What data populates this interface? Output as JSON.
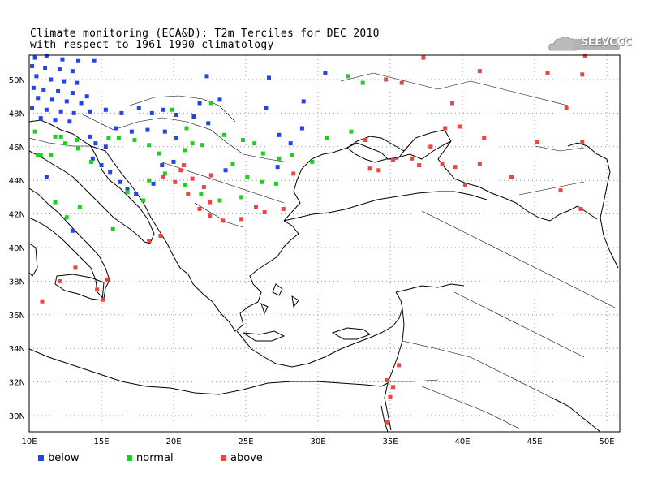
{
  "title": {
    "line1": "Climate monitoring (ECA&D): T2m Terciles for DEC 2010",
    "line2": "with respect to 1961-1990 climatology"
  },
  "logo": {
    "text": "SEEVCCC",
    "icon": "cloud-icon"
  },
  "colors": {
    "below": "#2244ee",
    "normal": "#22cc22",
    "above": "#ee4444",
    "coast": "#000000",
    "grid": "#999999"
  },
  "axes": {
    "lon_labels": [
      "10E",
      "15E",
      "20E",
      "25E",
      "30E",
      "35E",
      "40E",
      "45E",
      "50E"
    ],
    "lat_labels": [
      "30N",
      "32N",
      "34N",
      "36N",
      "38N",
      "40N",
      "42N",
      "44N",
      "46N",
      "48N",
      "50N"
    ]
  },
  "legend": [
    {
      "key": "below",
      "label": "below"
    },
    {
      "key": "normal",
      "label": "normal"
    },
    {
      "key": "above",
      "label": "above"
    }
  ],
  "stations": {
    "below": [
      [
        10.4,
        51.3
      ],
      [
        11.2,
        51.4
      ],
      [
        12.3,
        51.2
      ],
      [
        13.4,
        51.1
      ],
      [
        14.5,
        51.1
      ],
      [
        10.2,
        50.8
      ],
      [
        11.1,
        50.7
      ],
      [
        12.1,
        50.6
      ],
      [
        13.0,
        50.5
      ],
      [
        10.5,
        50.2
      ],
      [
        11.5,
        50.0
      ],
      [
        12.4,
        49.9
      ],
      [
        13.3,
        49.8
      ],
      [
        10.3,
        49.5
      ],
      [
        11.0,
        49.4
      ],
      [
        12.0,
        49.3
      ],
      [
        13.0,
        49.2
      ],
      [
        14.0,
        49.0
      ],
      [
        10.6,
        48.9
      ],
      [
        11.6,
        48.8
      ],
      [
        12.6,
        48.7
      ],
      [
        13.6,
        48.6
      ],
      [
        10.2,
        48.3
      ],
      [
        11.2,
        48.2
      ],
      [
        12.2,
        48.1
      ],
      [
        13.1,
        48.0
      ],
      [
        14.2,
        48.1
      ],
      [
        15.3,
        48.2
      ],
      [
        10.8,
        47.7
      ],
      [
        11.8,
        47.6
      ],
      [
        12.8,
        47.5
      ],
      [
        16.4,
        48.0
      ],
      [
        17.6,
        48.3
      ],
      [
        18.5,
        48.0
      ],
      [
        19.3,
        48.2
      ],
      [
        20.2,
        47.9
      ],
      [
        21.4,
        47.8
      ],
      [
        21.8,
        48.6
      ],
      [
        23.2,
        48.8
      ],
      [
        22.4,
        47.4
      ],
      [
        16.0,
        47.1
      ],
      [
        17.1,
        46.9
      ],
      [
        18.2,
        47.0
      ],
      [
        19.4,
        46.9
      ],
      [
        20.2,
        46.5
      ],
      [
        14.2,
        46.6
      ],
      [
        14.6,
        46.2
      ],
      [
        15.3,
        46.0
      ],
      [
        14.4,
        45.3
      ],
      [
        15.0,
        44.9
      ],
      [
        15.6,
        44.5
      ],
      [
        16.3,
        43.9
      ],
      [
        16.8,
        43.5
      ],
      [
        17.4,
        43.2
      ],
      [
        18.6,
        43.8
      ],
      [
        19.2,
        44.9
      ],
      [
        20.0,
        45.1
      ],
      [
        23.6,
        44.6
      ],
      [
        26.4,
        48.3
      ],
      [
        27.3,
        46.7
      ],
      [
        28.1,
        46.2
      ],
      [
        27.2,
        44.8
      ],
      [
        11.2,
        44.2
      ],
      [
        13.0,
        41.0
      ],
      [
        26.6,
        50.1
      ],
      [
        30.5,
        50.4
      ],
      [
        28.9,
        47.1
      ],
      [
        29.0,
        48.7
      ],
      [
        22.3,
        50.2
      ]
    ],
    "normal": [
      [
        10.4,
        46.9
      ],
      [
        11.8,
        46.6
      ],
      [
        12.5,
        46.2
      ],
      [
        13.3,
        46.4
      ],
      [
        10.6,
        45.5
      ],
      [
        11.5,
        45.5
      ],
      [
        15.5,
        46.5
      ],
      [
        16.2,
        46.5
      ],
      [
        17.3,
        46.4
      ],
      [
        18.3,
        46.1
      ],
      [
        19.0,
        45.6
      ],
      [
        20.8,
        45.8
      ],
      [
        21.3,
        46.2
      ],
      [
        22.0,
        46.1
      ],
      [
        23.5,
        46.7
      ],
      [
        24.8,
        46.4
      ],
      [
        25.6,
        46.2
      ],
      [
        26.2,
        45.6
      ],
      [
        27.3,
        45.3
      ],
      [
        28.2,
        45.5
      ],
      [
        29.6,
        45.1
      ],
      [
        30.6,
        46.5
      ],
      [
        24.1,
        45.0
      ],
      [
        25.1,
        44.2
      ],
      [
        26.1,
        43.9
      ],
      [
        27.1,
        43.8
      ],
      [
        24.7,
        43.0
      ],
      [
        23.2,
        42.8
      ],
      [
        21.9,
        43.2
      ],
      [
        20.8,
        43.7
      ],
      [
        19.4,
        44.4
      ],
      [
        18.3,
        44.0
      ],
      [
        16.8,
        43.3
      ],
      [
        17.9,
        42.8
      ],
      [
        15.8,
        41.1
      ],
      [
        13.5,
        42.4
      ],
      [
        11.8,
        42.7
      ],
      [
        12.6,
        41.8
      ],
      [
        13.4,
        45.9
      ],
      [
        14.3,
        45.1
      ],
      [
        19.9,
        48.2
      ],
      [
        20.9,
        47.1
      ],
      [
        22.6,
        48.6
      ],
      [
        32.1,
        50.2
      ],
      [
        33.1,
        49.8
      ],
      [
        32.3,
        46.9
      ],
      [
        12.2,
        46.6
      ],
      [
        10.8,
        45.5
      ]
    ],
    "above": [
      [
        37.3,
        51.3
      ],
      [
        41.2,
        50.5
      ],
      [
        45.9,
        50.4
      ],
      [
        48.5,
        51.4
      ],
      [
        48.3,
        50.3
      ],
      [
        34.7,
        50.0
      ],
      [
        35.8,
        49.8
      ],
      [
        39.3,
        48.6
      ],
      [
        47.2,
        48.3
      ],
      [
        38.8,
        47.1
      ],
      [
        39.8,
        47.2
      ],
      [
        41.5,
        46.5
      ],
      [
        45.2,
        46.3
      ],
      [
        48.3,
        46.3
      ],
      [
        37.8,
        46.0
      ],
      [
        36.5,
        45.3
      ],
      [
        38.6,
        45.0
      ],
      [
        39.5,
        44.8
      ],
      [
        41.2,
        45.0
      ],
      [
        43.4,
        44.2
      ],
      [
        40.2,
        43.7
      ],
      [
        46.8,
        43.4
      ],
      [
        48.2,
        42.3
      ],
      [
        33.3,
        46.4
      ],
      [
        33.6,
        44.7
      ],
      [
        34.2,
        44.6
      ],
      [
        35.2,
        45.2
      ],
      [
        37.0,
        44.9
      ],
      [
        20.1,
        43.9
      ],
      [
        20.5,
        44.6
      ],
      [
        21.3,
        44.1
      ],
      [
        21.0,
        43.2
      ],
      [
        22.1,
        43.6
      ],
      [
        22.5,
        42.7
      ],
      [
        21.8,
        42.3
      ],
      [
        22.5,
        41.9
      ],
      [
        23.4,
        41.6
      ],
      [
        24.7,
        41.7
      ],
      [
        25.7,
        42.4
      ],
      [
        26.3,
        42.1
      ],
      [
        27.6,
        42.3
      ],
      [
        28.3,
        44.4
      ],
      [
        19.3,
        44.2
      ],
      [
        20.7,
        44.9
      ],
      [
        22.6,
        44.3
      ],
      [
        18.3,
        40.4
      ],
      [
        19.1,
        40.7
      ],
      [
        15.4,
        38.1
      ],
      [
        14.7,
        37.5
      ],
      [
        15.1,
        36.9
      ],
      [
        12.1,
        38.0
      ],
      [
        13.2,
        38.8
      ],
      [
        10.9,
        36.8
      ],
      [
        34.8,
        32.1
      ],
      [
        35.2,
        31.7
      ],
      [
        35.0,
        31.1
      ],
      [
        34.8,
        29.6
      ],
      [
        35.6,
        33.0
      ]
    ]
  }
}
